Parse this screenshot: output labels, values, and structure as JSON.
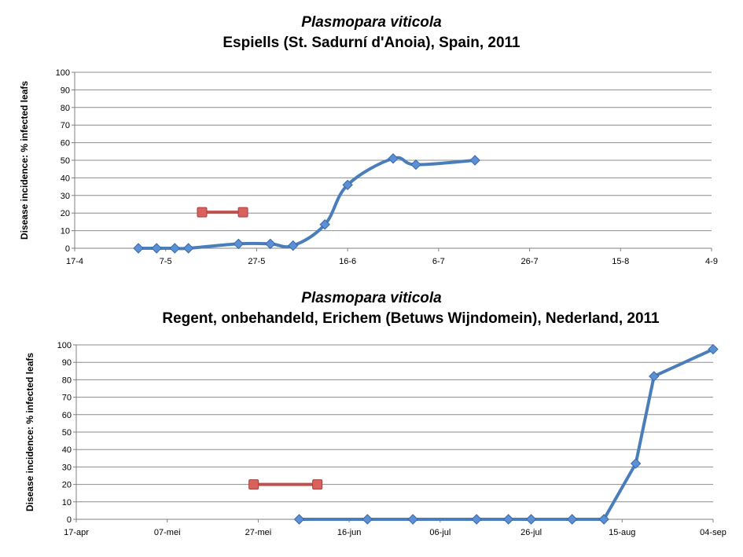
{
  "chart_data": [
    {
      "type": "line",
      "title_line1": "Plasmopara viticola",
      "title_line2": "Espiells (St. Sadurní d'Anoia), Spain, 2011",
      "xlabel": "",
      "ylabel": "Disease incidence: % infected leafs",
      "ylim": [
        0,
        100
      ],
      "yticks": [
        0,
        10,
        20,
        30,
        40,
        50,
        60,
        70,
        80,
        90,
        100
      ],
      "xticks": [
        "17-4",
        "7-5",
        "27-5",
        "16-6",
        "6-7",
        "26-7",
        "15-8",
        "4-9"
      ],
      "x_days_start": [
        0,
        20,
        40,
        60,
        80,
        100,
        120,
        140
      ],
      "grid": true,
      "series": [
        {
          "color": "#4a7ebb",
          "marker": "diamond",
          "smooth": true,
          "points": [
            {
              "x": "2011-05-01",
              "y": 0
            },
            {
              "x": "2011-05-05",
              "y": 0
            },
            {
              "x": "2011-05-09",
              "y": 0
            },
            {
              "x": "2011-05-12",
              "y": 0
            },
            {
              "x": "2011-05-23",
              "y": 2.5
            },
            {
              "x": "2011-05-30",
              "y": 2.5
            },
            {
              "x": "2011-06-04",
              "y": 1.5
            },
            {
              "x": "2011-06-11",
              "y": 13.5
            },
            {
              "x": "2011-06-16",
              "y": 36
            },
            {
              "x": "2011-06-26",
              "y": 51
            },
            {
              "x": "2011-07-01",
              "y": 47.5
            },
            {
              "x": "2011-07-14",
              "y": 50
            }
          ]
        },
        {
          "color": "#c0504d",
          "marker": "square",
          "smooth": false,
          "points": [
            {
              "x": "2011-05-15",
              "y": 20.5
            },
            {
              "x": "2011-05-24",
              "y": 20.5
            }
          ]
        }
      ]
    },
    {
      "type": "line",
      "title_line1": "Plasmopara viticola",
      "title_line2": "Regent, onbehandeld, Erichem (Betuws Wijndomein), Nederland, 2011",
      "xlabel": "",
      "ylabel": "Disease incidence: % infected leafs",
      "ylim": [
        0,
        100
      ],
      "yticks": [
        0,
        10,
        20,
        30,
        40,
        50,
        60,
        70,
        80,
        90,
        100
      ],
      "xticks": [
        "17-apr",
        "07-mei",
        "27-mei",
        "16-jun",
        "06-jul",
        "26-jul",
        "15-aug",
        "04-sep"
      ],
      "grid": true,
      "series": [
        {
          "color": "#4a7ebb",
          "marker": "diamond",
          "smooth": false,
          "points": [
            {
              "x": "2011-06-05",
              "y": 0
            },
            {
              "x": "2011-06-20",
              "y": 0
            },
            {
              "x": "2011-06-30",
              "y": 0
            },
            {
              "x": "2011-07-14",
              "y": 0
            },
            {
              "x": "2011-07-21",
              "y": 0
            },
            {
              "x": "2011-07-26",
              "y": 0
            },
            {
              "x": "2011-08-04",
              "y": 0
            },
            {
              "x": "2011-08-11",
              "y": 0
            },
            {
              "x": "2011-08-18",
              "y": 32
            },
            {
              "x": "2011-08-22",
              "y": 82
            },
            {
              "x": "2011-09-04",
              "y": 97.5
            }
          ]
        },
        {
          "color": "#c0504d",
          "marker": "square",
          "smooth": false,
          "points": [
            {
              "x": "2011-05-26",
              "y": 20
            },
            {
              "x": "2011-06-09",
              "y": 20
            }
          ]
        }
      ]
    }
  ]
}
